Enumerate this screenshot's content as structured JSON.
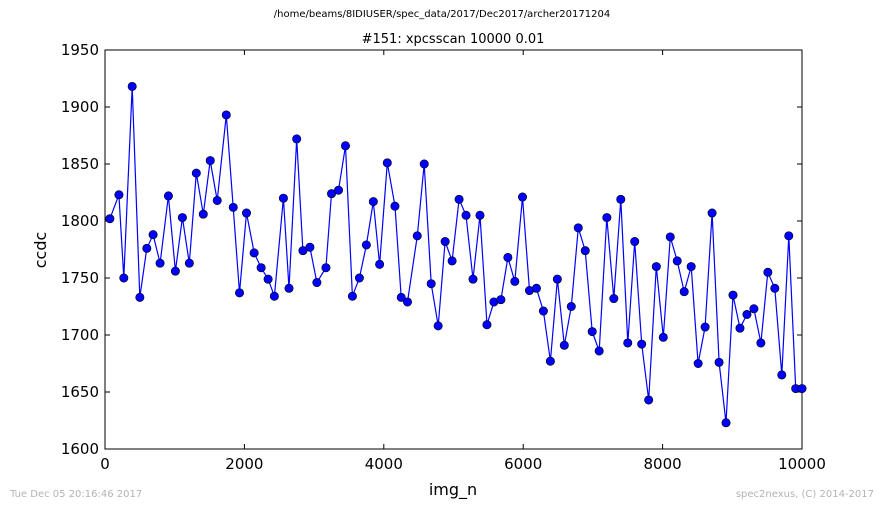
{
  "suptitle": "/home/beams/8IDIUSER/spec_data/2017/Dec2017/archer20171204",
  "footer": {
    "left": "Tue Dec 05 20:16:46 2017",
    "right": "spec2nexus, (C) 2014-2017"
  },
  "colors": {
    "series": "#0000ff",
    "footer": "#b3b3b3"
  },
  "chart_data": {
    "type": "line",
    "title": "#151: xpcsscan 10000 0.01",
    "xlabel": "img_n",
    "ylabel": "ccdc",
    "xlim": [
      0,
      10000
    ],
    "ylim": [
      1600,
      1950
    ],
    "xticks": [
      0,
      2000,
      4000,
      6000,
      8000,
      10000
    ],
    "yticks": [
      1600,
      1650,
      1700,
      1750,
      1800,
      1850,
      1900,
      1950
    ],
    "xtick_labels": [
      "0",
      "2000",
      "4000",
      "6000",
      "8000",
      "10000"
    ],
    "ytick_labels": [
      "1600",
      "1650",
      "1700",
      "1750",
      "1800",
      "1850",
      "1900",
      "1950"
    ],
    "grid": false,
    "marker": "circle",
    "series": [
      {
        "x": [
          70,
          200,
          270,
          390,
          500,
          600,
          690,
          790,
          910,
          1010,
          1110,
          1210,
          1310,
          1410,
          1510,
          1610,
          1740,
          1840,
          1930,
          2030,
          2140,
          2240,
          2340,
          2430,
          2560,
          2640,
          2750,
          2840,
          2940,
          3040,
          3170,
          3250,
          3350,
          3450,
          3550,
          3650,
          3750,
          3850,
          3940,
          4050,
          4160,
          4250,
          4340,
          4480,
          4580,
          4680,
          4780,
          4880,
          4980,
          5080,
          5180,
          5280,
          5380,
          5480,
          5580,
          5680,
          5780,
          5880,
          5990,
          6090,
          6190,
          6290,
          6390,
          6490,
          6590,
          6690,
          6790,
          6890,
          6990,
          7090,
          7200,
          7300,
          7400,
          7500,
          7600,
          7700,
          7800,
          7910,
          8010,
          8110,
          8210,
          8310,
          8410,
          8510,
          8610,
          8710,
          8810,
          8910,
          9010,
          9110,
          9210,
          9310,
          9410,
          9510,
          9610,
          9710,
          9810,
          9910,
          10000
        ],
        "values": [
          1802,
          1823,
          1750,
          1918,
          1733,
          1776,
          1788,
          1763,
          1822,
          1756,
          1803,
          1763,
          1842,
          1806,
          1853,
          1818,
          1893,
          1812,
          1737,
          1807,
          1772,
          1759,
          1749,
          1734,
          1820,
          1741,
          1872,
          1774,
          1777,
          1746,
          1759,
          1824,
          1827,
          1866,
          1734,
          1750,
          1779,
          1817,
          1762,
          1851,
          1813,
          1733,
          1729,
          1787,
          1850,
          1745,
          1708,
          1782,
          1765,
          1819,
          1805,
          1749,
          1805,
          1709,
          1729,
          1731,
          1768,
          1747,
          1821,
          1739,
          1741,
          1721,
          1677,
          1749,
          1691,
          1725,
          1794,
          1774,
          1703,
          1686,
          1803,
          1732,
          1819,
          1693,
          1782,
          1692,
          1643,
          1760,
          1698,
          1786,
          1765,
          1738,
          1760,
          1675,
          1707,
          1807,
          1676,
          1623,
          1735,
          1706,
          1718,
          1723,
          1693,
          1755,
          1741,
          1665,
          1787,
          1653,
          1653
        ]
      }
    ]
  }
}
